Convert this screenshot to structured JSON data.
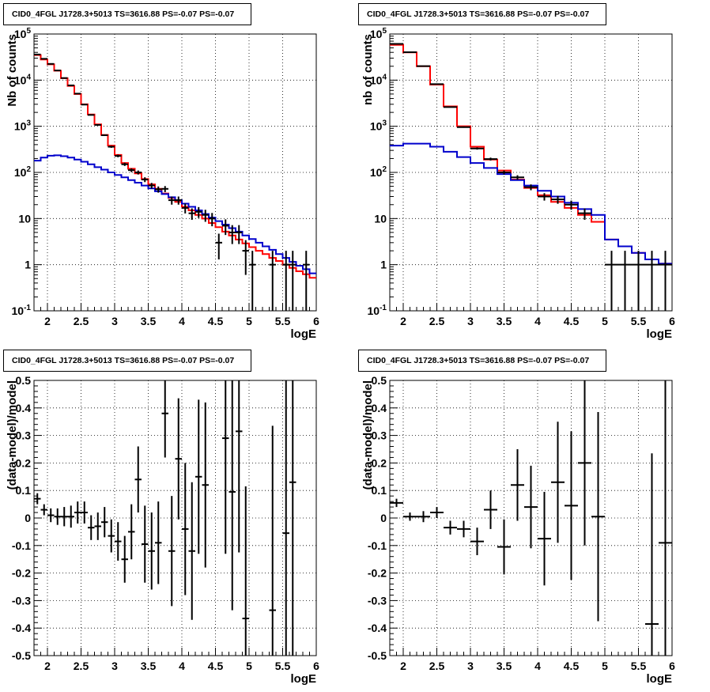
{
  "chart_data": [
    {
      "type": "line",
      "title": "CID0_4FGL J1728.3+5013 TS=3616.88 PS=-0.07 PS=-0.07",
      "xlabel": "logE",
      "ylabel": "Nb of counts",
      "xlim": [
        1.8,
        6.0
      ],
      "ylim": [
        0.1,
        100000
      ],
      "yscale": "log",
      "grid": true,
      "x_ticks": [
        "2",
        "2.5",
        "3",
        "3.5",
        "4",
        "4.5",
        "5",
        "5.5",
        "6"
      ],
      "y_ticks": [
        "10^-1",
        "1",
        "10",
        "10^2",
        "10^3",
        "10^4",
        "10^5"
      ],
      "series": [
        {
          "color": "#ff0000",
          "step": true,
          "bin_width": 0.1,
          "x": [
            1.8,
            1.9,
            2.0,
            2.1,
            2.2,
            2.3,
            2.4,
            2.5,
            2.6,
            2.7,
            2.8,
            2.9,
            3.0,
            3.1,
            3.2,
            3.3,
            3.4,
            3.5,
            3.6,
            3.7,
            3.8,
            3.9,
            4.0,
            4.1,
            4.2,
            4.3,
            4.4,
            4.5,
            4.6,
            4.7,
            4.8,
            4.9,
            5.0,
            5.1,
            5.2,
            5.3,
            5.4,
            5.5,
            5.6,
            5.7,
            5.8,
            5.9
          ],
          "values": [
            35000,
            28000,
            22000,
            16000,
            11000,
            7500,
            5000,
            3000,
            1800,
            1100,
            650,
            380,
            240,
            160,
            120,
            95,
            72,
            55,
            44,
            35,
            28,
            23,
            18,
            15,
            12,
            10,
            8,
            6.5,
            5.2,
            4.3,
            3.5,
            2.9,
            2.4,
            2.0,
            1.7,
            1.4,
            1.2,
            1.0,
            0.85,
            0.72,
            0.62,
            0.52
          ]
        },
        {
          "color": "#0000cc",
          "step": true,
          "bin_width": 0.1,
          "x": [
            1.8,
            1.9,
            2.0,
            2.1,
            2.2,
            2.3,
            2.4,
            2.5,
            2.6,
            2.7,
            2.8,
            2.9,
            3.0,
            3.1,
            3.2,
            3.3,
            3.4,
            3.5,
            3.6,
            3.7,
            3.8,
            3.9,
            4.0,
            4.1,
            4.2,
            4.3,
            4.4,
            4.5,
            4.6,
            4.7,
            4.8,
            4.9,
            5.0,
            5.1,
            5.2,
            5.3,
            5.4,
            5.5,
            5.6,
            5.7,
            5.8,
            5.9
          ],
          "values": [
            180,
            210,
            230,
            235,
            225,
            210,
            190,
            170,
            150,
            130,
            115,
            100,
            88,
            78,
            68,
            60,
            52,
            45,
            39,
            34,
            29,
            25,
            21,
            18,
            15,
            12.5,
            10.5,
            8.8,
            7.4,
            6.2,
            5.2,
            4.3,
            3.6,
            3.0,
            2.5,
            2.1,
            1.7,
            1.4,
            1.15,
            0.95,
            0.8,
            0.65
          ]
        },
        {
          "color": "#000000",
          "step": false,
          "x": [
            1.85,
            1.95,
            2.05,
            2.15,
            2.25,
            2.35,
            2.45,
            2.55,
            2.65,
            2.75,
            2.85,
            2.95,
            3.05,
            3.15,
            3.25,
            3.35,
            3.45,
            3.55,
            3.65,
            3.75,
            3.85,
            3.95,
            4.05,
            4.15,
            4.25,
            4.35,
            4.45,
            4.55,
            4.65,
            4.75,
            4.85,
            4.95,
            5.05,
            5.35,
            5.55,
            5.65,
            5.85
          ],
          "values": [
            36000,
            29000,
            22500,
            16200,
            11100,
            7700,
            5100,
            2950,
            1760,
            1070,
            640,
            360,
            228,
            150,
            112,
            100,
            70,
            52,
            43,
            44,
            25,
            25,
            17,
            13,
            14,
            12,
            10,
            3,
            7,
            5,
            5,
            2,
            1,
            1,
            1,
            1,
            1
          ],
          "errors": [
            190,
            170,
            150,
            127,
            105,
            88,
            71,
            54,
            42,
            33,
            25,
            19,
            15,
            12,
            10.6,
            10,
            8.4,
            7.2,
            6.6,
            6.6,
            5,
            5,
            4.1,
            3.6,
            3.7,
            3.5,
            3.2,
            1.7,
            2.6,
            2.2,
            2.2,
            1.4,
            1,
            1,
            1,
            1,
            1
          ]
        }
      ]
    },
    {
      "type": "line",
      "title": "CID0_4FGL J1728.3+5013 TS=3616.88 PS=-0.07 PS=-0.07",
      "xlabel": "logE",
      "ylabel": "nb of counts",
      "xlim": [
        1.8,
        6.0
      ],
      "ylim": [
        0.1,
        100000
      ],
      "yscale": "log",
      "grid": true,
      "x_ticks": [
        "2",
        "2.5",
        "3",
        "3.5",
        "4",
        "4.5",
        "5",
        "5.5",
        "6"
      ],
      "y_ticks": [
        "10^-1",
        "1",
        "10",
        "10^2",
        "10^3",
        "10^4",
        "10^5"
      ],
      "series": [
        {
          "color": "#ff0000",
          "step": true,
          "bin_width": 0.2,
          "x": [
            1.8,
            2.0,
            2.2,
            2.4,
            2.6,
            2.8,
            3.0,
            3.2,
            3.4,
            3.6,
            3.8,
            4.0,
            4.2,
            4.4,
            4.6,
            4.8,
            5.0,
            5.2,
            5.4,
            5.6,
            5.8
          ],
          "values": [
            58000,
            40000,
            20000,
            8000,
            2700,
            1000,
            360,
            190,
            110,
            70,
            46,
            32,
            23,
            17,
            12,
            8.5,
            3.5,
            2.5,
            1.8,
            1.3,
            1.05
          ]
        },
        {
          "color": "#0000cc",
          "step": true,
          "bin_width": 0.2,
          "x": [
            1.8,
            2.0,
            2.2,
            2.4,
            2.6,
            2.8,
            3.0,
            3.2,
            3.4,
            3.6,
            3.8,
            4.0,
            4.2,
            4.4,
            4.6,
            4.8,
            5.0,
            5.2,
            5.4,
            5.6,
            5.8
          ],
          "values": [
            380,
            420,
            420,
            360,
            280,
            215,
            160,
            125,
            92,
            68,
            52,
            40,
            30,
            22,
            16,
            12,
            3.5,
            2.5,
            1.8,
            1.3,
            1.05
          ]
        },
        {
          "color": "#000000",
          "step": false,
          "x": [
            1.9,
            2.1,
            2.3,
            2.5,
            2.7,
            2.9,
            3.1,
            3.3,
            3.5,
            3.7,
            3.9,
            4.1,
            4.3,
            4.5,
            4.7,
            5.1,
            5.3,
            5.5,
            5.7,
            5.9
          ],
          "values": [
            61000,
            40300,
            20100,
            8200,
            2610,
            960,
            330,
            195,
            100,
            78,
            48,
            30,
            26,
            20,
            13,
            1,
            1,
            1,
            1,
            1
          ],
          "errors": [
            247,
            200,
            142,
            90,
            51,
            31,
            18,
            14,
            10,
            8.8,
            6.9,
            5.5,
            5.1,
            4.5,
            3.6,
            1,
            1,
            1,
            1,
            1
          ]
        }
      ]
    },
    {
      "type": "scatter",
      "title": "CID0_4FGL J1728.3+5013 TS=3616.88 PS=-0.07 PS=-0.07",
      "xlabel": "logE",
      "ylabel": "(data-model)/model",
      "xlim": [
        1.8,
        6.0
      ],
      "ylim": [
        -0.5,
        0.5
      ],
      "grid": true,
      "x_ticks": [
        "2",
        "2.5",
        "3",
        "3.5",
        "4",
        "4.5",
        "5",
        "5.5",
        "6"
      ],
      "y_ticks": [
        "-0.5",
        "-0.4",
        "-0.3",
        "-0.2",
        "-0.1",
        "0",
        "0.1",
        "0.2",
        "0.3",
        "0.4",
        "0.5"
      ],
      "bin_width": 0.1,
      "x": [
        1.85,
        1.95,
        2.05,
        2.15,
        2.25,
        2.35,
        2.45,
        2.55,
        2.65,
        2.75,
        2.85,
        2.95,
        3.05,
        3.15,
        3.25,
        3.35,
        3.45,
        3.55,
        3.65,
        3.75,
        3.85,
        3.95,
        4.05,
        4.15,
        4.25,
        4.35,
        4.65,
        4.75,
        4.85,
        4.95,
        5.35,
        5.55,
        5.65
      ],
      "values": [
        0.07,
        0.03,
        0.01,
        0.005,
        0.005,
        0.005,
        0.02,
        0.02,
        -0.035,
        -0.03,
        -0.015,
        -0.065,
        -0.085,
        -0.15,
        -0.05,
        0.14,
        -0.095,
        -0.12,
        -0.09,
        0.38,
        -0.12,
        0.215,
        -0.04,
        -0.12,
        0.15,
        0.12,
        0.29,
        0.095,
        0.315,
        -0.365,
        -0.335,
        -0.055,
        0.13
      ],
      "errors": [
        0.02,
        0.02,
        0.025,
        0.03,
        0.035,
        0.04,
        0.04,
        0.04,
        0.045,
        0.05,
        0.055,
        0.06,
        0.07,
        0.085,
        0.1,
        0.12,
        0.14,
        0.14,
        0.15,
        0.16,
        0.2,
        0.22,
        0.24,
        0.25,
        0.28,
        0.3,
        0.42,
        0.43,
        0.44,
        0.48,
        0.67,
        0.75,
        0.8
      ]
    },
    {
      "type": "scatter",
      "title": "CID0_4FGL J1728.3+5013 TS=3616.88 PS=-0.07 PS=-0.07",
      "xlabel": "logE",
      "ylabel": "(data-model)/model",
      "xlim": [
        1.8,
        6.0
      ],
      "ylim": [
        -0.5,
        0.5
      ],
      "grid": true,
      "x_ticks": [
        "2",
        "2.5",
        "3",
        "3.5",
        "4",
        "4.5",
        "5",
        "5.5",
        "6"
      ],
      "y_ticks": [
        "-0.5",
        "-0.4",
        "-0.3",
        "-0.2",
        "-0.1",
        "0",
        "0.1",
        "0.2",
        "0.3",
        "0.4",
        "0.5"
      ],
      "bin_width": 0.2,
      "x": [
        1.9,
        2.1,
        2.3,
        2.5,
        2.7,
        2.9,
        3.1,
        3.3,
        3.5,
        3.7,
        3.9,
        4.1,
        4.3,
        4.5,
        4.7,
        4.9,
        5.7,
        5.9
      ],
      "values": [
        0.055,
        0.005,
        0.005,
        0.02,
        -0.035,
        -0.04,
        -0.085,
        0.03,
        -0.105,
        0.12,
        0.04,
        -0.075,
        0.13,
        0.045,
        0.2,
        0.005,
        -0.385,
        -0.09
      ],
      "errors": [
        0.015,
        0.015,
        0.02,
        0.02,
        0.025,
        0.03,
        0.05,
        0.07,
        0.1,
        0.13,
        0.15,
        0.17,
        0.22,
        0.27,
        0.3,
        0.38,
        0.62,
        0.6
      ]
    }
  ]
}
